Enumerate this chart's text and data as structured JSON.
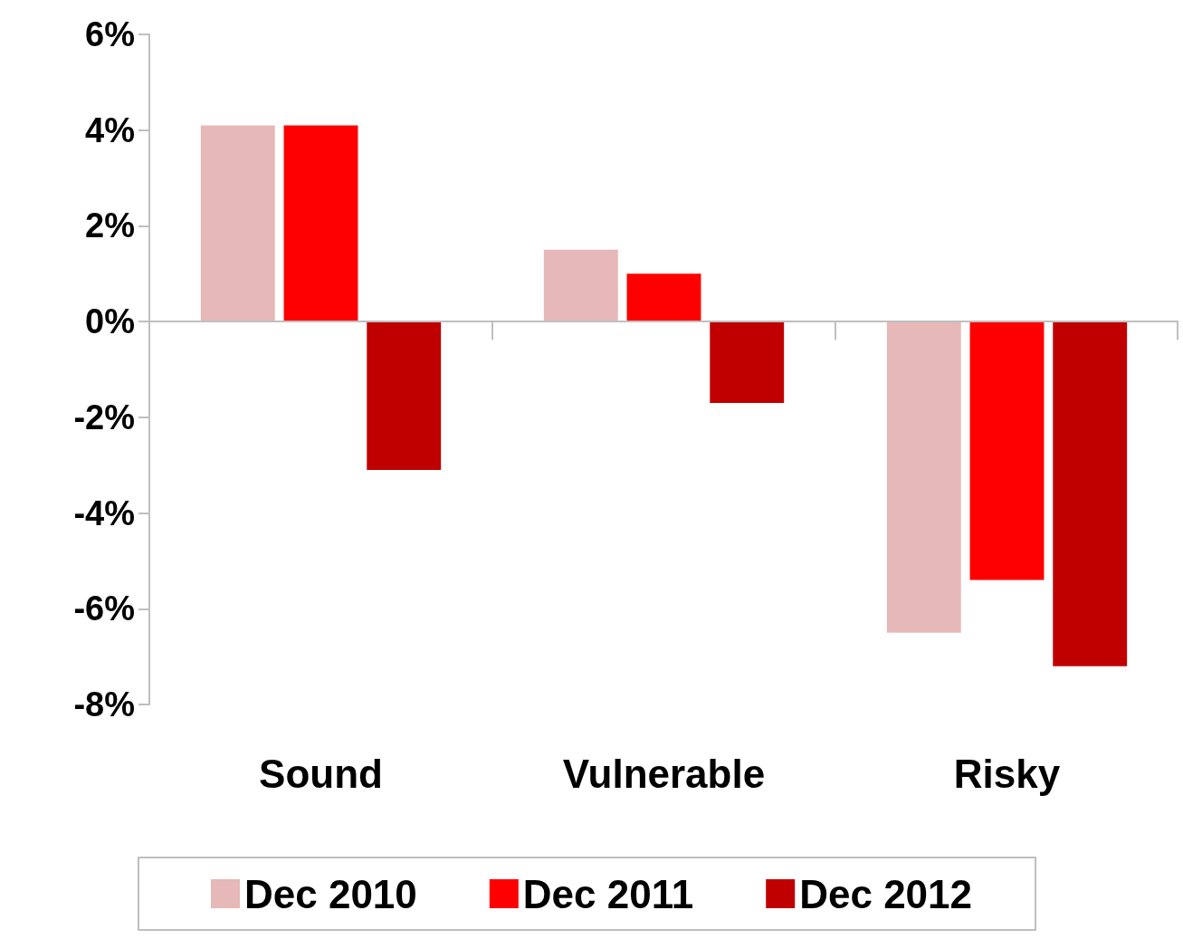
{
  "chart_data": {
    "type": "bar",
    "categories": [
      "Sound",
      "Vulnerable",
      "Risky"
    ],
    "series": [
      {
        "name": "Dec 2010",
        "color": "#e6b8b7",
        "values": [
          4.1,
          1.5,
          -6.5
        ]
      },
      {
        "name": "Dec 2011",
        "color": "#ff0000",
        "values": [
          4.1,
          1.0,
          -5.4
        ]
      },
      {
        "name": "Dec 2012",
        "color": "#c00000",
        "values": [
          -3.1,
          -1.7,
          -7.2
        ]
      }
    ],
    "ylim": [
      -8,
      6
    ],
    "yticks": [
      {
        "value": -8,
        "label": "-8%"
      },
      {
        "value": -6,
        "label": "-6%"
      },
      {
        "value": -4,
        "label": "-4%"
      },
      {
        "value": -2,
        "label": "-2%"
      },
      {
        "value": 0,
        "label": "0%"
      },
      {
        "value": 2,
        "label": "2%"
      },
      {
        "value": 4,
        "label": "4%"
      },
      {
        "value": 6,
        "label": "6%"
      }
    ],
    "ref_lines": [
      {
        "axis": "y",
        "value": 0,
        "color": "#bfbfbf"
      }
    ],
    "grid": false,
    "legend": "bottom"
  }
}
